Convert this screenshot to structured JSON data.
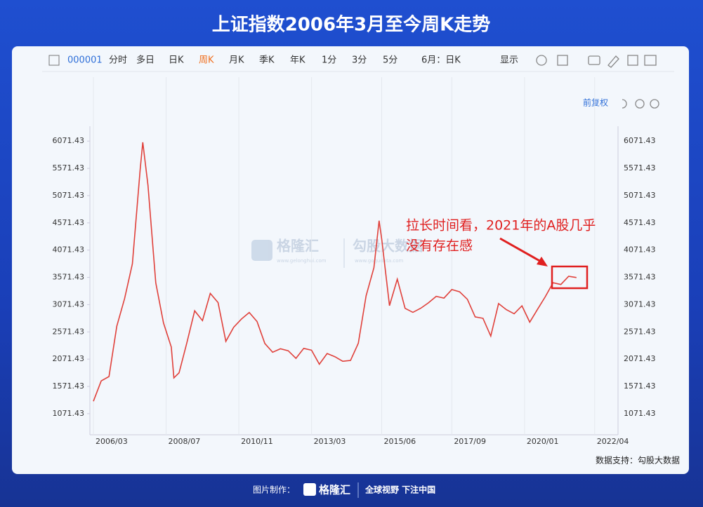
{
  "header": {
    "title": "上证指数2006年3月至今周K走势"
  },
  "toolbar": {
    "code": "000001",
    "items": [
      "分时",
      "多日",
      "日K",
      "周K",
      "月K",
      "季K",
      "年K",
      "1分",
      "3分",
      "5分",
      "6月：日K",
      "显示"
    ],
    "active": "周K",
    "adjust": "前复权"
  },
  "watermark": {
    "brand": "格隆汇",
    "brand_url": "www.gelonghui.com",
    "source": "勾股大数据",
    "source_url": "www.gogudata.com"
  },
  "chart_data": {
    "type": "line",
    "x": [
      "2006/03",
      "2006/06",
      "2006/09",
      "2006/12",
      "2007/03",
      "2007/06",
      "2007/09",
      "2007/10",
      "2007/12",
      "2008/03",
      "2008/06",
      "2008/09",
      "2008/10",
      "2008/12",
      "2009/03",
      "2009/06",
      "2009/09",
      "2009/12",
      "2010/03",
      "2010/06",
      "2010/09",
      "2010/12",
      "2011/03",
      "2011/06",
      "2011/09",
      "2011/12",
      "2012/03",
      "2012/06",
      "2012/09",
      "2012/12",
      "2013/03",
      "2013/06",
      "2013/09",
      "2013/12",
      "2014/03",
      "2014/06",
      "2014/09",
      "2014/12",
      "2015/03",
      "2015/05",
      "2015/06",
      "2015/09",
      "2015/12",
      "2016/03",
      "2016/06",
      "2016/09",
      "2016/12",
      "2017/03",
      "2017/06",
      "2017/09",
      "2017/12",
      "2018/03",
      "2018/06",
      "2018/09",
      "2018/12",
      "2019/03",
      "2019/06",
      "2019/09",
      "2019/12",
      "2020/03",
      "2020/06",
      "2020/09",
      "2020/12",
      "2021/03",
      "2021/06",
      "2021/09"
    ],
    "series": [
      {
        "name": "上证指数",
        "color": "#e0403a",
        "values": [
          1299,
          1672,
          1752,
          2675,
          3183,
          3820,
          5552,
          6050,
          5261,
          3472,
          2736,
          2293,
          1728,
          1821,
          2373,
          2959,
          2779,
          3277,
          3109,
          2398,
          2656,
          2808,
          2928,
          2762,
          2359,
          2199,
          2262,
          2225,
          2086,
          2269,
          2236,
          1979,
          2175,
          2116,
          2033,
          2048,
          2363,
          3234,
          3748,
          4611,
          4277,
          3053,
          3539,
          3004,
          2930,
          3005,
          3104,
          3223,
          3192,
          3349,
          3307,
          3169,
          2847,
          2821,
          2494,
          3091,
          2979,
          2905,
          3050,
          2750,
          2985,
          3218,
          3473,
          3441,
          3591,
          3568
        ]
      }
    ],
    "xlim": [
      "2006/03",
      "2023/01"
    ],
    "xticks": [
      "2006/03",
      "2008/07",
      "2010/11",
      "2013/03",
      "2015/06",
      "2017/09",
      "2020/01",
      "2022/04"
    ],
    "ylim": [
      620,
      6280
    ],
    "yticks": [
      1071.43,
      1571.43,
      2071.43,
      2571.43,
      3071.43,
      3571.43,
      4071.43,
      4571.43,
      5071.43,
      5571.43,
      6071.43
    ],
    "xgrid": true,
    "annotation": [
      "拉长时间看，2021年的A股几乎",
      "没有存在感"
    ]
  },
  "source": "数据支持：勾股大数据",
  "footer": {
    "label": "图片制作：",
    "brand": "格隆汇",
    "slogan": "全球视野 下注中国"
  }
}
